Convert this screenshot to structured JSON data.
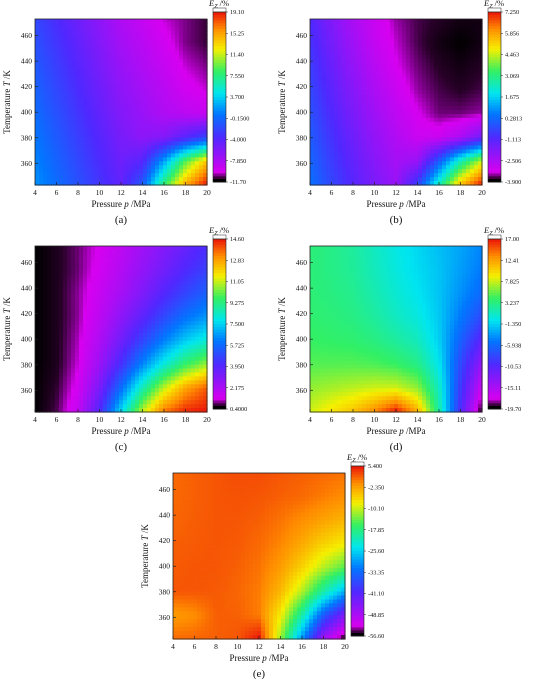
{
  "chart_data": [
    {
      "type": "heatmap",
      "panel_label": "(a)",
      "xlabel": "Pressure p /MPa",
      "ylabel": "Temperature T /K",
      "colorbar_title": "E_Z /%",
      "x_ticks": [
        4,
        6,
        8,
        10,
        12,
        14,
        16,
        18,
        20
      ],
      "y_ticks": [
        360,
        380,
        400,
        420,
        440,
        460
      ],
      "xlim": [
        4,
        20
      ],
      "ylim": [
        343,
        473
      ],
      "colorbar_ticks": [
        "19.10",
        "15.25",
        "11.40",
        "7.550",
        "3.700",
        "-0.1500",
        "-4.000",
        "-7.850",
        "-11.70"
      ],
      "range": [
        -11.7,
        19.1
      ],
      "grid_z": [
        [
          -2.0,
          -3.5,
          -5.0,
          -6.5,
          -8.0,
          -9.0,
          -10.0,
          -10.5,
          -11.0
        ],
        [
          -1.5,
          -3.0,
          -4.5,
          -6.0,
          -7.5,
          -8.5,
          -9.5,
          -10.5,
          -11.0
        ],
        [
          -1.0,
          -2.5,
          -4.0,
          -5.5,
          -7.0,
          -8.0,
          -9.0,
          -10.0,
          -10.5
        ],
        [
          -0.5,
          -2.0,
          -3.5,
          -5.0,
          -6.5,
          -7.5,
          -8.5,
          -9.5,
          -10.0
        ],
        [
          0.0,
          -1.5,
          -3.0,
          -4.5,
          -6.0,
          -7.0,
          -8.0,
          -8.5,
          -9.0
        ],
        [
          0.5,
          -1.0,
          -2.5,
          -4.0,
          -5.5,
          -6.5,
          -6.0,
          -4.0,
          -2.0
        ],
        [
          1.0,
          -0.5,
          -2.0,
          -3.5,
          -5.0,
          -4.0,
          2.0,
          9.0,
          14.0
        ],
        [
          1.5,
          0.0,
          -1.5,
          -3.0,
          -4.5,
          -1.0,
          8.0,
          15.0,
          19.1
        ]
      ]
    },
    {
      "type": "heatmap",
      "panel_label": "(b)",
      "xlabel": "Pressure p /MPa",
      "ylabel": "Temperature T /K",
      "colorbar_title": "E_Z /%",
      "x_ticks": [
        4,
        6,
        8,
        10,
        12,
        14,
        16,
        18,
        20
      ],
      "y_ticks": [
        360,
        380,
        400,
        420,
        440,
        460
      ],
      "xlim": [
        4,
        20
      ],
      "ylim": [
        343,
        473
      ],
      "colorbar_ticks": [
        "7.250",
        "5.856",
        "4.463",
        "3.069",
        "1.675",
        "0.2813",
        "-1.113",
        "-2.506",
        "-3.900"
      ],
      "range": [
        -3.9,
        7.25
      ],
      "grid_z": [
        [
          -1.0,
          -1.8,
          -2.5,
          -3.0,
          -3.4,
          -3.6,
          -3.7,
          -3.8,
          -3.8
        ],
        [
          -0.8,
          -1.6,
          -2.3,
          -2.9,
          -3.3,
          -3.6,
          -3.8,
          -3.9,
          -3.8
        ],
        [
          -0.6,
          -1.4,
          -2.1,
          -2.7,
          -3.2,
          -3.5,
          -3.7,
          -3.8,
          -3.7
        ],
        [
          -0.4,
          -1.2,
          -1.9,
          -2.5,
          -3.0,
          -3.4,
          -3.6,
          -3.7,
          -3.6
        ],
        [
          -0.2,
          -1.0,
          -1.7,
          -2.3,
          -2.8,
          -3.2,
          -3.5,
          -3.5,
          -3.4
        ],
        [
          0.0,
          -0.8,
          -1.5,
          -2.1,
          -2.6,
          -3.0,
          -3.0,
          -2.5,
          -1.5
        ],
        [
          0.2,
          -0.6,
          -1.3,
          -1.9,
          -2.4,
          -2.2,
          0.0,
          2.5,
          4.5
        ],
        [
          0.4,
          -0.4,
          -1.1,
          -1.7,
          -2.2,
          -0.5,
          2.5,
          5.5,
          7.25
        ]
      ]
    },
    {
      "type": "heatmap",
      "panel_label": "(c)",
      "xlabel": "Pressure p /MPa",
      "ylabel": "Temperature T /K",
      "colorbar_title": "E_Z /%",
      "x_ticks": [
        4,
        6,
        8,
        10,
        12,
        14,
        16,
        18,
        20
      ],
      "y_ticks": [
        360,
        380,
        400,
        420,
        440,
        460
      ],
      "xlim": [
        4,
        20
      ],
      "ylim": [
        343,
        473
      ],
      "colorbar_ticks": [
        "14.60",
        "12.83",
        "11.05",
        "9.275",
        "7.500",
        "5.725",
        "3.950",
        "2.175",
        "0.4000"
      ],
      "range": [
        0.4,
        14.6
      ],
      "grid_z": [
        [
          0.4,
          0.6,
          0.9,
          1.3,
          1.8,
          2.4,
          3.0,
          3.6,
          4.2
        ],
        [
          0.4,
          0.6,
          0.9,
          1.4,
          2.0,
          2.7,
          3.4,
          4.1,
          4.7
        ],
        [
          0.4,
          0.6,
          1.0,
          1.6,
          2.3,
          3.1,
          4.0,
          4.8,
          5.5
        ],
        [
          0.4,
          0.6,
          1.0,
          1.8,
          2.8,
          3.8,
          4.9,
          5.9,
          6.6
        ],
        [
          0.4,
          0.6,
          1.1,
          2.1,
          3.4,
          4.8,
          6.2,
          7.4,
          8.2
        ],
        [
          0.4,
          0.6,
          1.2,
          2.5,
          4.3,
          6.3,
          8.1,
          9.6,
          10.6
        ],
        [
          0.4,
          0.7,
          1.4,
          3.2,
          5.8,
          8.6,
          11.0,
          12.8,
          13.8
        ],
        [
          0.4,
          0.8,
          1.7,
          4.1,
          7.6,
          11.0,
          13.5,
          14.4,
          14.6
        ]
      ]
    },
    {
      "type": "heatmap",
      "panel_label": "(d)",
      "xlabel": "Pressure p /MPa",
      "ylabel": "Temperature T /K",
      "colorbar_title": "E_Z /%",
      "x_ticks": [
        4,
        6,
        8,
        10,
        12,
        14,
        16,
        18,
        20
      ],
      "y_ticks": [
        360,
        380,
        400,
        420,
        440,
        460
      ],
      "xlim": [
        4,
        20
      ],
      "ylim": [
        343,
        473
      ],
      "colorbar_ticks": [
        "17.00",
        "12.41",
        "7.825",
        "3.237",
        "-1.350",
        "-5.938",
        "-10.53",
        "-15.11",
        "-19.70"
      ],
      "range": [
        -19.7,
        17.0
      ],
      "grid_z": [
        [
          3.5,
          3.0,
          2.2,
          1.0,
          -0.2,
          -1.2,
          -2.2,
          -3.2,
          -4.5
        ],
        [
          3.5,
          3.0,
          2.4,
          1.2,
          0.0,
          -1.0,
          -2.0,
          -3.5,
          -5.0
        ],
        [
          3.6,
          3.2,
          2.7,
          1.6,
          0.4,
          -0.6,
          -2.0,
          -4.0,
          -6.0
        ],
        [
          3.8,
          3.5,
          3.1,
          2.2,
          1.0,
          0.0,
          -1.8,
          -5.0,
          -8.0
        ],
        [
          4.2,
          4.0,
          3.8,
          3.2,
          2.2,
          1.2,
          -1.5,
          -6.5,
          -11.0
        ],
        [
          5.0,
          5.0,
          5.0,
          4.8,
          4.2,
          3.0,
          -0.5,
          -8.0,
          -14.0
        ],
        [
          6.5,
          7.0,
          7.5,
          8.0,
          8.0,
          6.5,
          1.0,
          -9.0,
          -17.0
        ],
        [
          8.0,
          9.5,
          11.0,
          13.5,
          17.0,
          12.0,
          2.0,
          -10.0,
          -19.7
        ]
      ]
    },
    {
      "type": "heatmap",
      "panel_label": "(e)",
      "xlabel": "Pressure p /MPa",
      "ylabel": "Temperature T /K",
      "colorbar_title": "E_Z /%",
      "x_ticks": [
        4,
        6,
        8,
        10,
        12,
        14,
        16,
        18,
        20
      ],
      "y_ticks": [
        360,
        380,
        400,
        420,
        440,
        460
      ],
      "xlim": [
        4,
        20
      ],
      "ylim": [
        343,
        473
      ],
      "colorbar_ticks": [
        "5.400",
        "-2.350",
        "-10.10",
        "-17.85",
        "-25.60",
        "-33.35",
        "-41.10",
        "-48.85",
        "-56.60"
      ],
      "range": [
        -56.6,
        5.4
      ],
      "grid_z": [
        [
          1.0,
          1.5,
          2.0,
          2.5,
          2.5,
          2.0,
          1.5,
          1.0,
          0.5
        ],
        [
          1.0,
          1.5,
          2.0,
          2.2,
          2.0,
          1.5,
          1.0,
          0.0,
          -1.0
        ],
        [
          1.2,
          1.6,
          2.0,
          2.0,
          1.5,
          0.5,
          -1.0,
          -2.5,
          -4.0
        ],
        [
          1.5,
          1.8,
          2.0,
          1.8,
          1.0,
          -0.5,
          -3.0,
          -6.0,
          -8.0
        ],
        [
          1.8,
          2.0,
          2.0,
          1.5,
          0.5,
          -2.0,
          -6.0,
          -11.0,
          -15.0
        ],
        [
          2.0,
          2.0,
          1.8,
          1.2,
          0.0,
          -4.0,
          -11.0,
          -20.0,
          -28.0
        ],
        [
          -2.0,
          -1.0,
          1.5,
          1.5,
          0.0,
          -8.0,
          -20.0,
          -35.0,
          -45.0
        ],
        [
          1.0,
          1.2,
          1.5,
          2.0,
          5.4,
          -12.0,
          -30.0,
          -48.0,
          -56.6
        ]
      ]
    }
  ]
}
